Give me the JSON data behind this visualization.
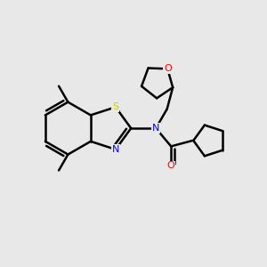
{
  "background_color": "#e8e8e8",
  "atom_colors": {
    "C": "#000000",
    "N": "#0000ff",
    "O": "#ff0000",
    "S": "#cccc00"
  },
  "bond_color": "#000000",
  "bond_width": 1.8,
  "figsize": [
    3.0,
    3.0
  ],
  "dpi": 100
}
